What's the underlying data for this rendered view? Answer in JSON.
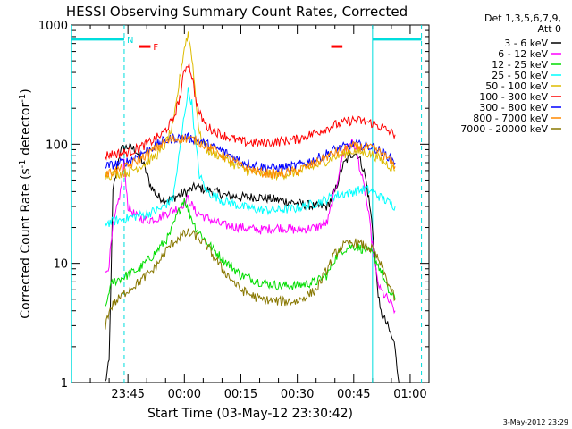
{
  "chart_data": {
    "type": "line",
    "title": "HESSI Observing Summary Count Rates, Corrected",
    "xlabel": "Start Time (03-May-12 23:30:42)",
    "ylabel_main": "Corrected Count Rate (s",
    "ylabel_sup1": "-1",
    "ylabel_mid": " detector",
    "ylabel_sup2": "-1",
    "ylabel_end": ")",
    "yscale": "log",
    "ylim": [
      1,
      1000
    ],
    "xlim_minutes_after_2330": [
      0,
      95
    ],
    "x_unit": "minutes after 03-May-12 23:30",
    "x_ticks": [
      {
        "m": 15,
        "label": "23:45"
      },
      {
        "m": 30,
        "label": "00:00"
      },
      {
        "m": 45,
        "label": "00:15"
      },
      {
        "m": 60,
        "label": "00:30"
      },
      {
        "m": 75,
        "label": "00:45"
      },
      {
        "m": 90,
        "label": "01:00"
      }
    ],
    "y_ticks": [
      {
        "v": 1,
        "label": "1"
      },
      {
        "v": 10,
        "label": "10"
      },
      {
        "v": 100,
        "label": "100"
      },
      {
        "v": 1000,
        "label": "1000"
      }
    ],
    "legend_header": [
      "Det 1,3,5,6,7,9,",
      "Att 0"
    ],
    "legend_position": "right",
    "series": [
      {
        "name": "3 - 6 keV",
        "color": "#000000",
        "points": [
          [
            9,
            1
          ],
          [
            10,
            1.5
          ],
          [
            11,
            40
          ],
          [
            13,
            90
          ],
          [
            15,
            95
          ],
          [
            17,
            90
          ],
          [
            19,
            70
          ],
          [
            21,
            45
          ],
          [
            23,
            36
          ],
          [
            26,
            34
          ],
          [
            29,
            38
          ],
          [
            31,
            40
          ],
          [
            33,
            44
          ],
          [
            35,
            42
          ],
          [
            38,
            40
          ],
          [
            41,
            37
          ],
          [
            45,
            36
          ],
          [
            50,
            36
          ],
          [
            55,
            34
          ],
          [
            60,
            32
          ],
          [
            65,
            30
          ],
          [
            68,
            30
          ],
          [
            70,
            40
          ],
          [
            72,
            65
          ],
          [
            74,
            80
          ],
          [
            75,
            85
          ],
          [
            76,
            82
          ],
          [
            77,
            70
          ],
          [
            78,
            55
          ],
          [
            79,
            35
          ],
          [
            80,
            20
          ],
          [
            81,
            8
          ],
          [
            82,
            4
          ],
          [
            84,
            3
          ],
          [
            86,
            2
          ],
          [
            87,
            1
          ]
        ]
      },
      {
        "name": "6 - 12 keV",
        "color": "#ff00ff",
        "points": [
          [
            9,
            8
          ],
          [
            10,
            10
          ],
          [
            11,
            20
          ],
          [
            13,
            40
          ],
          [
            14,
            70
          ],
          [
            15,
            30
          ],
          [
            17,
            25
          ],
          [
            20,
            23
          ],
          [
            23,
            24
          ],
          [
            26,
            27
          ],
          [
            29,
            30
          ],
          [
            31,
            35
          ],
          [
            33,
            27
          ],
          [
            36,
            24
          ],
          [
            40,
            21
          ],
          [
            45,
            20
          ],
          [
            50,
            19
          ],
          [
            55,
            20
          ],
          [
            60,
            19
          ],
          [
            65,
            20
          ],
          [
            68,
            22
          ],
          [
            70,
            40
          ],
          [
            72,
            80
          ],
          [
            73,
            95
          ],
          [
            74,
            105
          ],
          [
            75,
            100
          ],
          [
            76,
            80
          ],
          [
            77,
            55
          ],
          [
            78,
            40
          ],
          [
            79,
            25
          ],
          [
            80,
            14
          ],
          [
            81,
            8
          ],
          [
            82,
            6
          ],
          [
            84,
            5
          ],
          [
            86,
            4
          ]
        ]
      },
      {
        "name": "12 - 25 keV",
        "color": "#00dd00",
        "points": [
          [
            9,
            4
          ],
          [
            10,
            6
          ],
          [
            11,
            7
          ],
          [
            15,
            8
          ],
          [
            18,
            9
          ],
          [
            22,
            12
          ],
          [
            26,
            17
          ],
          [
            29,
            30
          ],
          [
            30,
            35
          ],
          [
            31,
            28
          ],
          [
            33,
            20
          ],
          [
            36,
            15
          ],
          [
            40,
            11
          ],
          [
            45,
            8
          ],
          [
            50,
            7
          ],
          [
            55,
            6.5
          ],
          [
            60,
            6.5
          ],
          [
            65,
            7
          ],
          [
            68,
            8
          ],
          [
            70,
            11
          ],
          [
            72,
            13
          ],
          [
            75,
            14
          ],
          [
            78,
            13
          ],
          [
            80,
            12
          ],
          [
            82,
            9
          ],
          [
            84,
            6
          ],
          [
            86,
            5
          ]
        ]
      },
      {
        "name": "25 - 50 keV",
        "color": "#00ffff",
        "points": [
          [
            9,
            22
          ],
          [
            10,
            22
          ],
          [
            15,
            24
          ],
          [
            20,
            26
          ],
          [
            24,
            29
          ],
          [
            27,
            35
          ],
          [
            29,
            100
          ],
          [
            30,
            180
          ],
          [
            31,
            280
          ],
          [
            32,
            220
          ],
          [
            33,
            100
          ],
          [
            34,
            55
          ],
          [
            36,
            40
          ],
          [
            40,
            34
          ],
          [
            45,
            30
          ],
          [
            50,
            28
          ],
          [
            55,
            28
          ],
          [
            60,
            29
          ],
          [
            65,
            32
          ],
          [
            70,
            37
          ],
          [
            75,
            40
          ],
          [
            78,
            42
          ],
          [
            80,
            40
          ],
          [
            82,
            36
          ],
          [
            84,
            33
          ],
          [
            86,
            30
          ]
        ]
      },
      {
        "name": "50 - 100 keV",
        "color": "#ddbb00",
        "points": [
          [
            9,
            55
          ],
          [
            10,
            55
          ],
          [
            15,
            58
          ],
          [
            20,
            70
          ],
          [
            24,
            88
          ],
          [
            27,
            140
          ],
          [
            29,
            400
          ],
          [
            30,
            650
          ],
          [
            31,
            850
          ],
          [
            32,
            550
          ],
          [
            33,
            250
          ],
          [
            34,
            120
          ],
          [
            36,
            90
          ],
          [
            40,
            78
          ],
          [
            45,
            62
          ],
          [
            50,
            56
          ],
          [
            55,
            55
          ],
          [
            60,
            58
          ],
          [
            65,
            66
          ],
          [
            70,
            78
          ],
          [
            75,
            88
          ],
          [
            80,
            82
          ],
          [
            82,
            75
          ],
          [
            84,
            68
          ],
          [
            86,
            60
          ]
        ]
      },
      {
        "name": "100 - 300 keV",
        "color": "#ff0000",
        "points": [
          [
            9,
            80
          ],
          [
            10,
            82
          ],
          [
            15,
            85
          ],
          [
            20,
            100
          ],
          [
            24,
            120
          ],
          [
            27,
            160
          ],
          [
            29,
            260
          ],
          [
            30,
            420
          ],
          [
            31,
            480
          ],
          [
            32,
            380
          ],
          [
            33,
            240
          ],
          [
            34,
            180
          ],
          [
            36,
            140
          ],
          [
            40,
            120
          ],
          [
            45,
            105
          ],
          [
            50,
            102
          ],
          [
            55,
            105
          ],
          [
            60,
            110
          ],
          [
            65,
            125
          ],
          [
            70,
            145
          ],
          [
            75,
            160
          ],
          [
            80,
            150
          ],
          [
            82,
            140
          ],
          [
            84,
            130
          ],
          [
            86,
            120
          ]
        ]
      },
      {
        "name": "300 - 800 keV",
        "color": "#0000ff",
        "points": [
          [
            9,
            65
          ],
          [
            10,
            66
          ],
          [
            15,
            72
          ],
          [
            20,
            88
          ],
          [
            24,
            105
          ],
          [
            27,
            112
          ],
          [
            30,
            114
          ],
          [
            33,
            110
          ],
          [
            36,
            100
          ],
          [
            40,
            88
          ],
          [
            45,
            72
          ],
          [
            50,
            65
          ],
          [
            55,
            63
          ],
          [
            60,
            66
          ],
          [
            65,
            75
          ],
          [
            70,
            90
          ],
          [
            75,
            100
          ],
          [
            80,
            95
          ],
          [
            82,
            88
          ],
          [
            84,
            80
          ],
          [
            86,
            70
          ]
        ]
      },
      {
        "name": "800 - 7000 keV",
        "color": "#ff8800",
        "points": [
          [
            9,
            56
          ],
          [
            10,
            57
          ],
          [
            15,
            65
          ],
          [
            20,
            82
          ],
          [
            24,
            100
          ],
          [
            27,
            110
          ],
          [
            30,
            112
          ],
          [
            33,
            108
          ],
          [
            36,
            96
          ],
          [
            40,
            82
          ],
          [
            45,
            66
          ],
          [
            50,
            58
          ],
          [
            55,
            56
          ],
          [
            60,
            60
          ],
          [
            65,
            70
          ],
          [
            70,
            85
          ],
          [
            75,
            96
          ],
          [
            80,
            92
          ],
          [
            82,
            85
          ],
          [
            84,
            76
          ],
          [
            86,
            65
          ]
        ]
      },
      {
        "name": "7000 - 20000 keV",
        "color": "#887700",
        "points": [
          [
            9,
            3
          ],
          [
            10,
            4
          ],
          [
            11,
            4.5
          ],
          [
            15,
            6
          ],
          [
            18,
            7
          ],
          [
            22,
            9
          ],
          [
            26,
            14
          ],
          [
            29,
            17
          ],
          [
            31,
            18
          ],
          [
            33,
            17
          ],
          [
            36,
            14
          ],
          [
            40,
            9
          ],
          [
            45,
            6
          ],
          [
            50,
            5
          ],
          [
            55,
            4.8
          ],
          [
            60,
            4.8
          ],
          [
            65,
            6
          ],
          [
            68,
            9
          ],
          [
            70,
            12
          ],
          [
            72,
            14
          ],
          [
            75,
            15
          ],
          [
            78,
            14
          ],
          [
            80,
            13
          ],
          [
            82,
            10
          ],
          [
            84,
            7
          ],
          [
            86,
            5
          ]
        ]
      }
    ],
    "annotations": [
      {
        "label": "N",
        "color": "#00dddd",
        "m_start": 0,
        "m_end": 14,
        "y_value": 760
      },
      {
        "label": "F",
        "color": "#ff0000",
        "m_start": 18,
        "m_end": 21,
        "y_value": 660
      },
      {
        "label": "",
        "color": "#ff0000",
        "m_start": 69,
        "m_end": 72,
        "y_value": 660
      },
      {
        "label": "",
        "color": "#00dddd",
        "m_start": 80,
        "m_end": 93,
        "y_value": 760
      }
    ],
    "vertical_lines": [
      {
        "m": 14,
        "style": "dashed",
        "color": "#00dddd"
      },
      {
        "m": 80,
        "style": "solid",
        "color": "#00dddd"
      },
      {
        "m": 93,
        "style": "dashed",
        "color": "#00dddd"
      }
    ],
    "timestamp": "3-May-2012 23:29"
  }
}
